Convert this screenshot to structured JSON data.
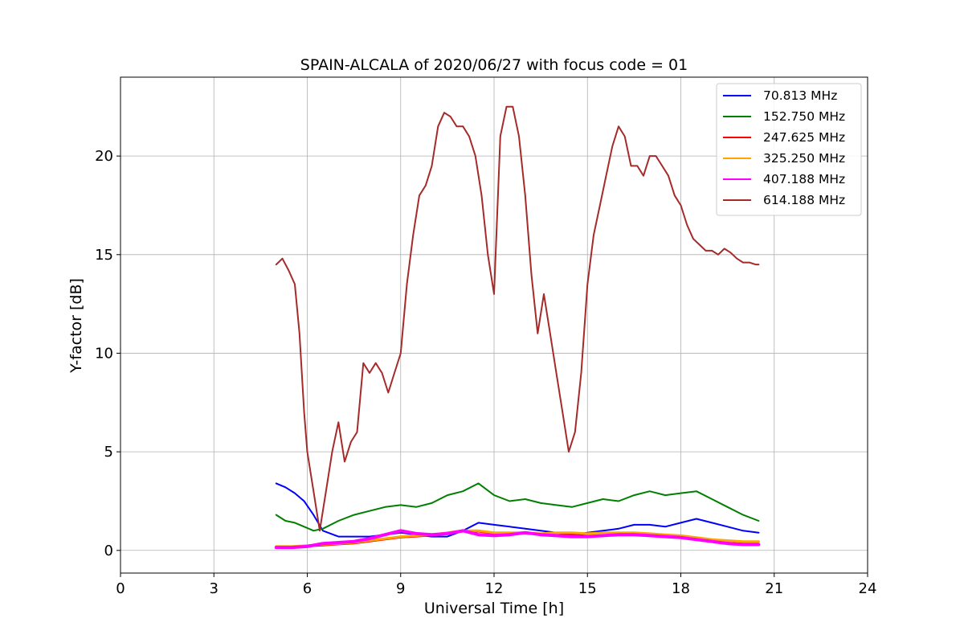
{
  "chart_data": {
    "type": "line",
    "title": "SPAIN-ALCALA of 2020/06/27 with focus code = 01",
    "xlabel": "Universal Time [h]",
    "ylabel": "Y-factor [dB]",
    "xlim": [
      0,
      24
    ],
    "ylim": [
      -1.15,
      24.0
    ],
    "xticks": [
      0,
      3,
      6,
      9,
      12,
      15,
      18,
      21,
      24
    ],
    "yticks": [
      0,
      5,
      10,
      15,
      20
    ],
    "grid": true,
    "legend_position": "top-right",
    "series": [
      {
        "name": " 70.813 MHz",
        "color": "#0000ff",
        "x": [
          5.0,
          5.3,
          5.6,
          5.9,
          6.2,
          6.5,
          7.0,
          7.5,
          8.0,
          8.5,
          9.0,
          9.5,
          10.0,
          10.5,
          11.0,
          11.5,
          12.0,
          12.5,
          13.0,
          13.5,
          14.0,
          14.5,
          15.0,
          15.5,
          16.0,
          16.5,
          17.0,
          17.5,
          18.0,
          18.5,
          19.0,
          19.5,
          20.0,
          20.5
        ],
        "y": [
          3.4,
          3.2,
          2.9,
          2.5,
          1.8,
          1.0,
          0.7,
          0.7,
          0.7,
          0.8,
          0.9,
          0.8,
          0.7,
          0.7,
          1.0,
          1.4,
          1.3,
          1.2,
          1.1,
          1.0,
          0.9,
          0.8,
          0.9,
          1.0,
          1.1,
          1.3,
          1.3,
          1.2,
          1.4,
          1.6,
          1.4,
          1.2,
          1.0,
          0.9
        ]
      },
      {
        "name": "152.750 MHz",
        "color": "#008000",
        "x": [
          5.0,
          5.3,
          5.6,
          5.9,
          6.2,
          6.5,
          7.0,
          7.5,
          8.0,
          8.5,
          9.0,
          9.5,
          10.0,
          10.5,
          11.0,
          11.5,
          12.0,
          12.5,
          13.0,
          13.5,
          14.0,
          14.5,
          15.0,
          15.5,
          16.0,
          16.5,
          17.0,
          17.5,
          18.0,
          18.5,
          19.0,
          19.5,
          20.0,
          20.5
        ],
        "y": [
          1.8,
          1.5,
          1.4,
          1.2,
          1.0,
          1.1,
          1.5,
          1.8,
          2.0,
          2.2,
          2.3,
          2.2,
          2.4,
          2.8,
          3.0,
          3.4,
          2.8,
          2.5,
          2.6,
          2.4,
          2.3,
          2.2,
          2.4,
          2.6,
          2.5,
          2.8,
          3.0,
          2.8,
          2.9,
          3.0,
          2.6,
          2.2,
          1.8,
          1.5
        ]
      },
      {
        "name": "247.625 MHz",
        "color": "#ff0000",
        "x": [
          5.0,
          5.5,
          6.0,
          6.5,
          7.0,
          7.5,
          8.0,
          8.5,
          9.0,
          9.5,
          10.0,
          10.5,
          11.0,
          11.5,
          12.0,
          12.5,
          13.0,
          13.5,
          14.0,
          14.5,
          15.0,
          15.5,
          16.0,
          16.5,
          17.0,
          17.5,
          18.0,
          18.5,
          19.0,
          19.5,
          20.0,
          20.5
        ],
        "y": [
          0.15,
          0.15,
          0.2,
          0.25,
          0.3,
          0.35,
          0.45,
          0.55,
          0.65,
          0.7,
          0.75,
          0.85,
          0.95,
          0.95,
          0.85,
          0.85,
          0.85,
          0.8,
          0.8,
          0.8,
          0.75,
          0.75,
          0.8,
          0.8,
          0.8,
          0.75,
          0.7,
          0.6,
          0.5,
          0.4,
          0.35,
          0.35
        ]
      },
      {
        "name": "325.250 MHz",
        "color": "#ffa500",
        "x": [
          5.0,
          5.5,
          6.0,
          6.5,
          7.0,
          7.5,
          8.0,
          8.5,
          9.0,
          9.5,
          10.0,
          10.5,
          11.0,
          11.5,
          12.0,
          12.5,
          13.0,
          13.5,
          14.0,
          14.5,
          15.0,
          15.5,
          16.0,
          16.5,
          17.0,
          17.5,
          18.0,
          18.5,
          19.0,
          19.5,
          20.0,
          20.5
        ],
        "y": [
          0.2,
          0.2,
          0.25,
          0.3,
          0.35,
          0.4,
          0.5,
          0.6,
          0.7,
          0.75,
          0.8,
          0.9,
          1.0,
          1.0,
          0.9,
          0.9,
          0.9,
          0.85,
          0.9,
          0.9,
          0.85,
          0.9,
          0.9,
          0.9,
          0.85,
          0.8,
          0.75,
          0.65,
          0.55,
          0.5,
          0.45,
          0.45
        ]
      },
      {
        "name": "407.188 MHz",
        "color": "#ff00ff",
        "x": [
          5.0,
          5.5,
          6.0,
          6.5,
          7.0,
          7.5,
          8.0,
          8.5,
          9.0,
          9.5,
          10.0,
          10.5,
          11.0,
          11.5,
          12.0,
          12.5,
          13.0,
          13.5,
          14.0,
          14.5,
          15.0,
          15.5,
          16.0,
          16.5,
          17.0,
          17.5,
          18.0,
          18.5,
          19.0,
          19.5,
          20.0,
          20.5
        ],
        "y": [
          0.15,
          0.15,
          0.2,
          0.35,
          0.4,
          0.45,
          0.6,
          0.8,
          1.0,
          0.85,
          0.8,
          0.85,
          1.0,
          0.8,
          0.75,
          0.8,
          0.9,
          0.8,
          0.75,
          0.7,
          0.7,
          0.75,
          0.8,
          0.8,
          0.75,
          0.7,
          0.65,
          0.55,
          0.45,
          0.35,
          0.3,
          0.3
        ]
      },
      {
        "name": "614.188 MHz",
        "color": "#a52a2a",
        "x": [
          5.0,
          5.2,
          5.4,
          5.6,
          5.75,
          5.9,
          6.0,
          6.2,
          6.4,
          6.6,
          6.8,
          7.0,
          7.2,
          7.4,
          7.6,
          7.8,
          8.0,
          8.2,
          8.4,
          8.6,
          8.8,
          9.0,
          9.2,
          9.4,
          9.6,
          9.8,
          10.0,
          10.2,
          10.4,
          10.6,
          10.8,
          11.0,
          11.2,
          11.4,
          11.6,
          11.8,
          12.0,
          12.2,
          12.4,
          12.6,
          12.8,
          13.0,
          13.2,
          13.4,
          13.6,
          13.8,
          14.0,
          14.2,
          14.4,
          14.6,
          14.8,
          15.0,
          15.2,
          15.4,
          15.6,
          15.8,
          16.0,
          16.2,
          16.4,
          16.6,
          16.8,
          17.0,
          17.2,
          17.4,
          17.6,
          17.8,
          18.0,
          18.2,
          18.4,
          18.6,
          18.8,
          19.0,
          19.2,
          19.4,
          19.6,
          19.8,
          20.0,
          20.2,
          20.4,
          20.5
        ],
        "y": [
          14.5,
          14.8,
          14.2,
          13.5,
          11.0,
          7.0,
          5.0,
          3.0,
          1.0,
          3.0,
          5.0,
          6.5,
          4.5,
          5.5,
          6.0,
          9.5,
          9.0,
          9.5,
          9.0,
          8.0,
          9.0,
          10.0,
          13.5,
          16.0,
          18.0,
          18.5,
          19.5,
          21.5,
          22.2,
          22.0,
          21.5,
          21.5,
          21.0,
          20.0,
          18.0,
          15.0,
          13.0,
          21.0,
          22.5,
          22.5,
          21.0,
          18.0,
          14.0,
          11.0,
          13.0,
          11.0,
          9.0,
          7.0,
          5.0,
          6.0,
          9.0,
          13.5,
          16.0,
          17.5,
          19.0,
          20.5,
          21.5,
          21.0,
          19.5,
          19.5,
          19.0,
          20.0,
          20.0,
          19.5,
          19.0,
          18.0,
          17.5,
          16.5,
          15.8,
          15.5,
          15.2,
          15.2,
          15.0,
          15.3,
          15.1,
          14.8,
          14.6,
          14.6,
          14.5,
          14.5
        ]
      }
    ]
  }
}
